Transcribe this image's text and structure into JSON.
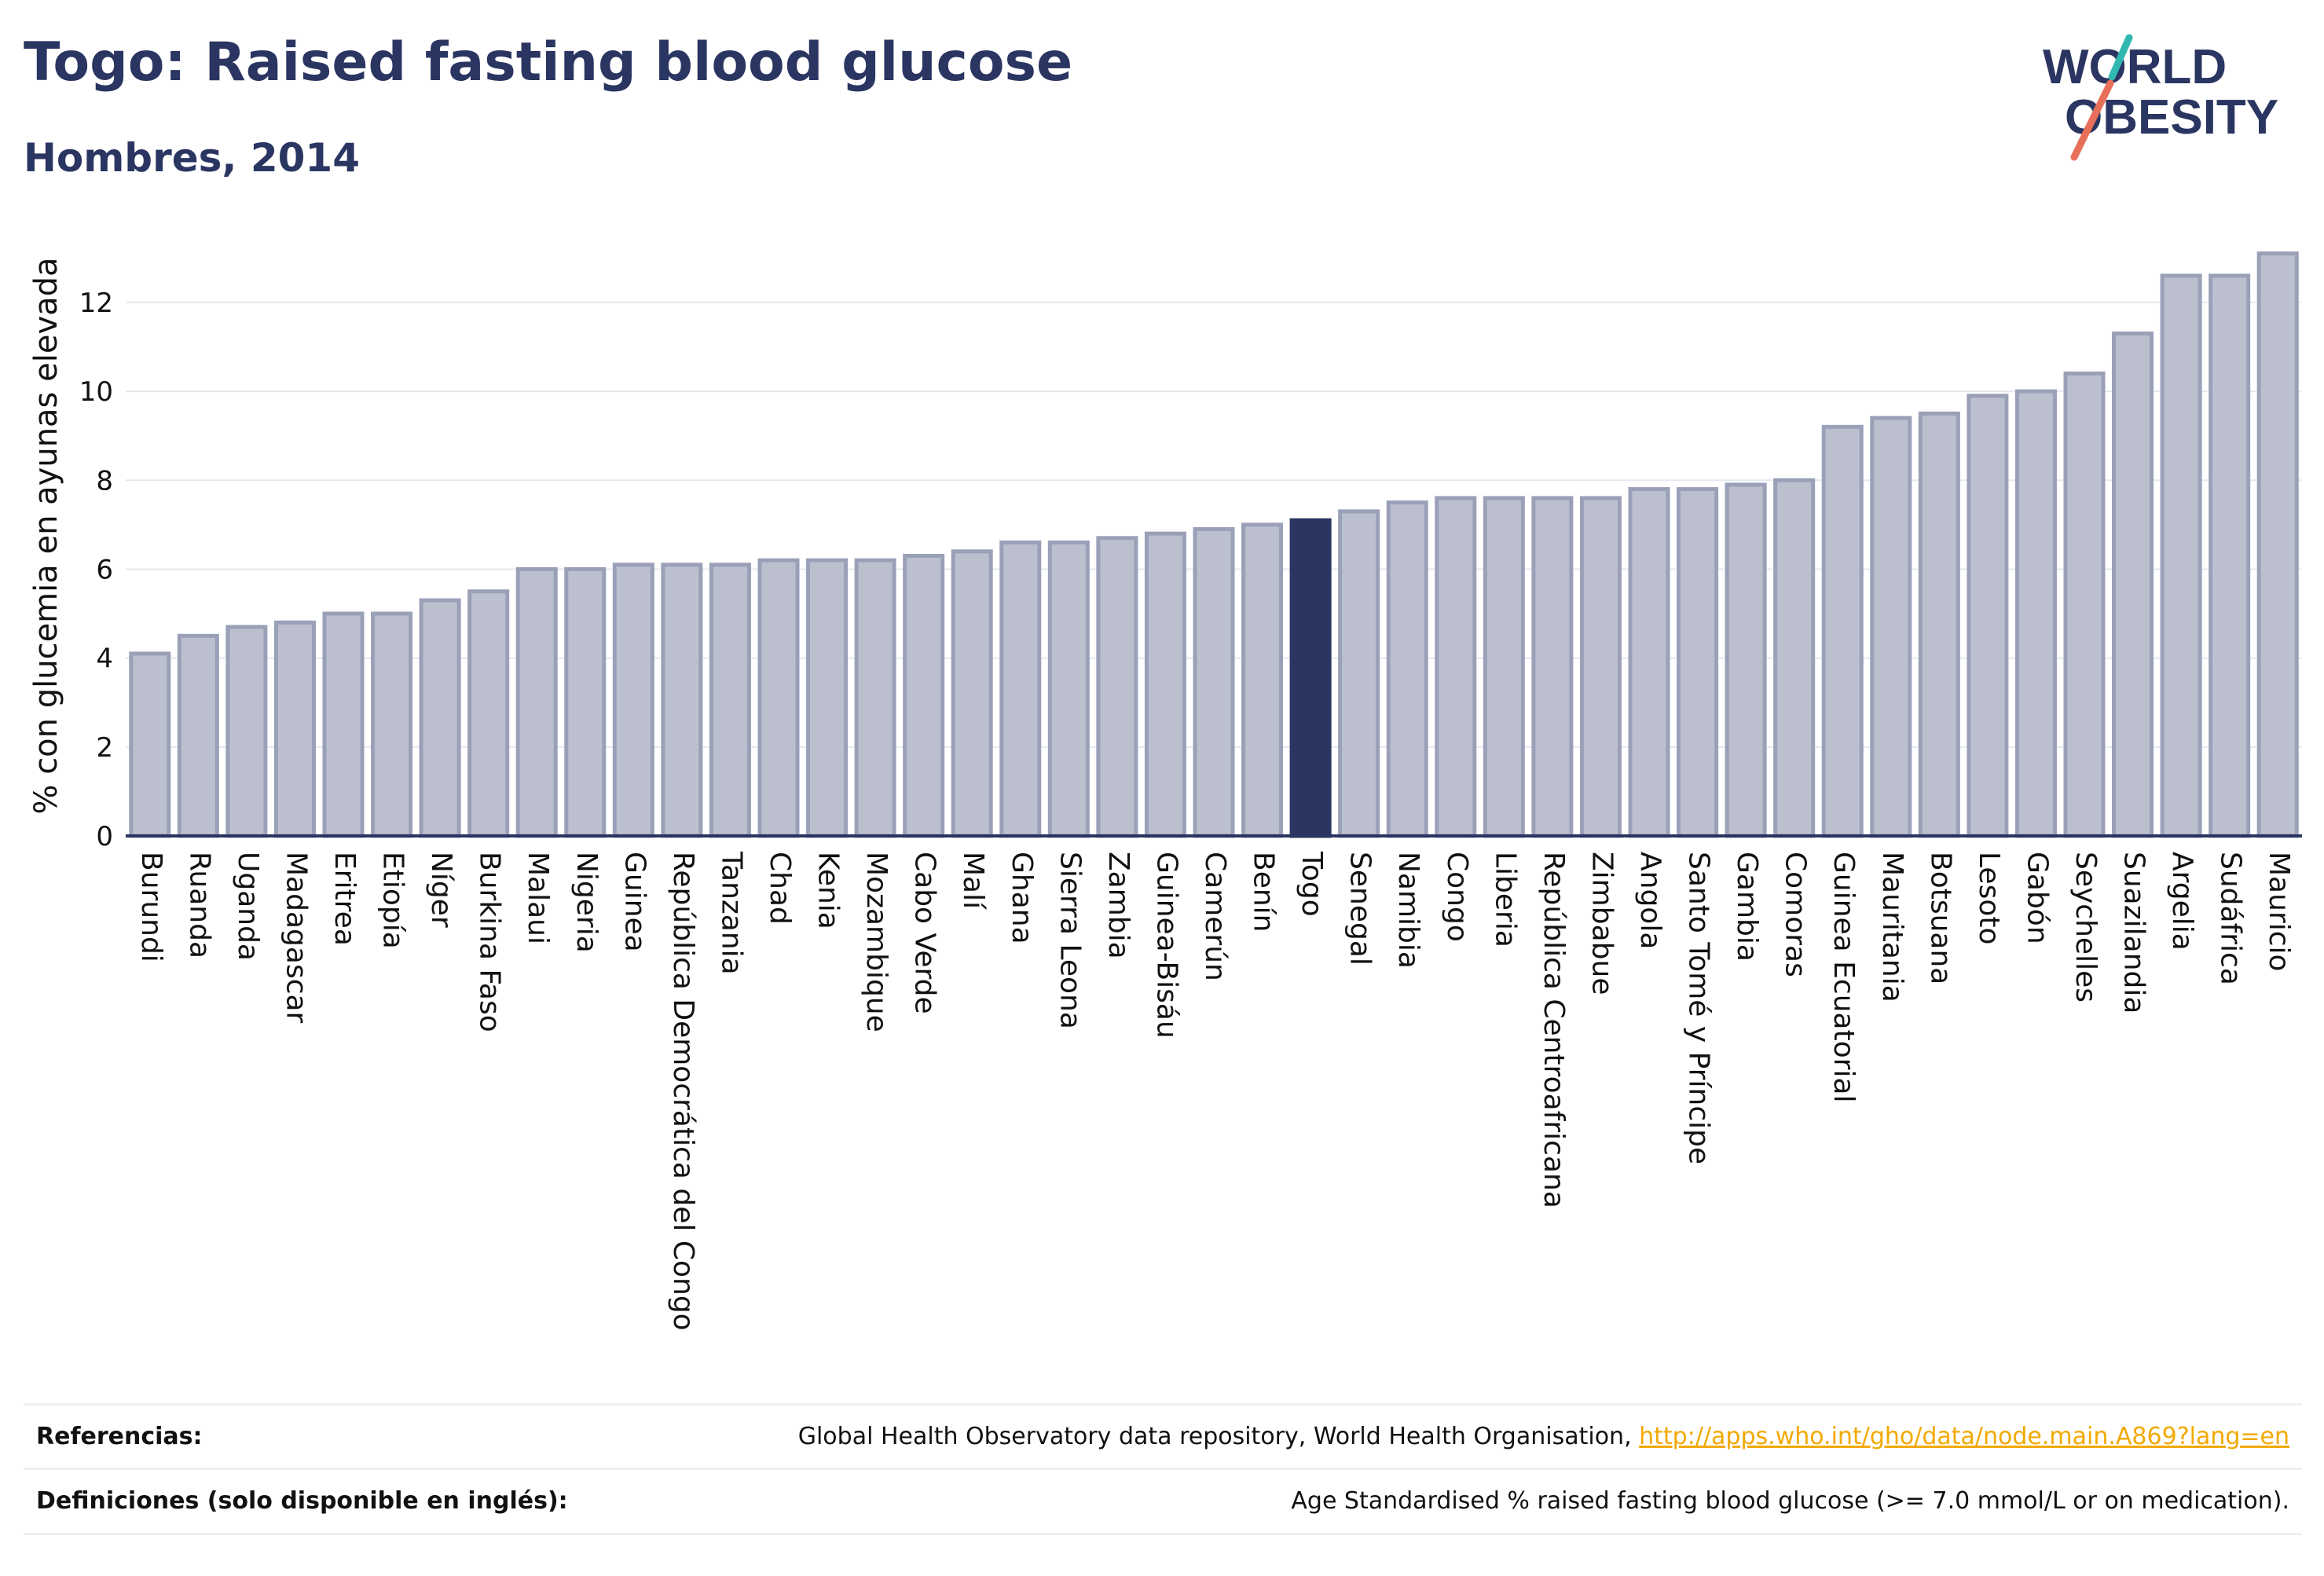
{
  "header": {
    "title": "Togo: Raised fasting blood glucose",
    "subtitle": "Hombres, 2014"
  },
  "logo": {
    "line1": "WORLD",
    "line2": "OBESITY",
    "text_color": "#2a3561",
    "slash_color_top": "#2fb7b0",
    "slash_color_bottom": "#e8705a"
  },
  "colors": {
    "bar_fill": "#bcc0ce",
    "bar_stroke": "#9aa0b8",
    "highlight_fill": "#2a3561",
    "grid": "#e6e8ef",
    "axis_text": "#111111"
  },
  "chart_data": {
    "type": "bar",
    "ylabel": "% con glucemia en ayunas elevada",
    "xlabel": "",
    "ylim": [
      0,
      13.5
    ],
    "yticks": [
      0,
      2,
      4,
      6,
      8,
      10,
      12
    ],
    "grid": true,
    "highlight": "Togo",
    "categories": [
      "Burundi",
      "Ruanda",
      "Uganda",
      "Madagascar",
      "Eritrea",
      "Etiopía",
      "Níger",
      "Burkina Faso",
      "Malaui",
      "Nigeria",
      "Guinea",
      "República Democrática del Congo",
      "Tanzania",
      "Chad",
      "Kenia",
      "Mozambique",
      "Cabo Verde",
      "Malí",
      "Ghana",
      "Sierra Leona",
      "Zambia",
      "Guinea-Bisáu",
      "Camerún",
      "Benín",
      "Togo",
      "Senegal",
      "Namibia",
      "Congo",
      "Liberia",
      "República Centroafricana",
      "Zimbabue",
      "Angola",
      "Santo Tomé y Príncipe",
      "Gambia",
      "Comoras",
      "Guinea Ecuatorial",
      "Mauritania",
      "Botsuana",
      "Lesoto",
      "Gabón",
      "Seychelles",
      "Suazilandia",
      "Argelia",
      "Sudáfrica",
      "Mauricio"
    ],
    "values": [
      4.1,
      4.5,
      4.7,
      4.8,
      5.0,
      5.0,
      5.3,
      5.5,
      6.0,
      6.0,
      6.1,
      6.1,
      6.1,
      6.2,
      6.2,
      6.2,
      6.3,
      6.4,
      6.6,
      6.6,
      6.7,
      6.8,
      6.9,
      7.0,
      7.1,
      7.3,
      7.5,
      7.6,
      7.6,
      7.6,
      7.6,
      7.8,
      7.8,
      7.9,
      8.0,
      9.2,
      9.4,
      9.5,
      9.9,
      10.0,
      10.4,
      11.3,
      12.6,
      12.6,
      13.1
    ]
  },
  "references": {
    "ref_label": "Referencias:",
    "ref_text": "Global Health Observatory data repository, World Health Organisation, ",
    "ref_link": "http://apps.who.int/gho/data/node.main.A869?lang=en",
    "def_label": "Definiciones (solo disponible en inglés):",
    "def_text": "Age Standardised % raised fasting blood glucose (>= 7.0 mmol/L or on medication)."
  }
}
